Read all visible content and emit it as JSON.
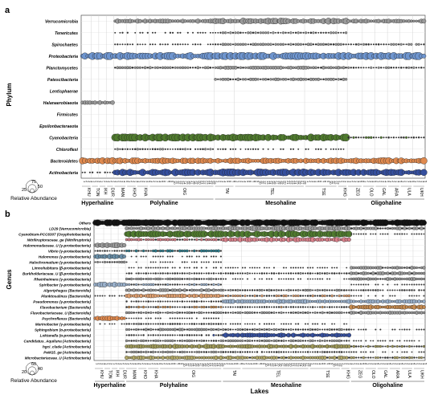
{
  "chart_data": [
    {
      "type": "scatter",
      "panel_label": "a",
      "ylabel": "Phylum",
      "xlabel": "",
      "rows": [
        {
          "label": "Verrucomicrobia",
          "color": "#9a9a9a"
        },
        {
          "label": "Tenericutes",
          "color": "#9a9a9a"
        },
        {
          "label": "Spirochaetes",
          "color": "#9a9a9a"
        },
        {
          "label": "Proteobacteria",
          "color": "#6e95cf"
        },
        {
          "label": "Planctomycetes",
          "color": "#9a9a9a"
        },
        {
          "label": "Patescibacteria",
          "color": "#9a9a9a"
        },
        {
          "label": "Lentisphaerae",
          "color": "#9a9a9a"
        },
        {
          "label": "Halanaerobiaeota",
          "color": "#9a9a9a"
        },
        {
          "label": "Firmicutes",
          "color": "#9a9a9a"
        },
        {
          "label": "Epsilonbacteraeota",
          "color": "#9a9a9a"
        },
        {
          "label": "Cyanobacteria",
          "color": "#4f7a2e"
        },
        {
          "label": "Chloroflexi",
          "color": "#9a9a9a"
        },
        {
          "label": "Bacteroidetes",
          "color": "#e08a4f"
        },
        {
          "label": "Actinobacteria",
          "color": "#354f9e"
        }
      ],
      "lake_groups": [
        "Hyperhaline",
        "Polyhaline",
        "Mesohaline",
        "Oligohaline"
      ],
      "lakes": [
        "KHU",
        "TON",
        "IKH",
        "DUR",
        "MAN",
        "KHO",
        "KHA",
        "OIG",
        "TAI",
        "TEL",
        "TSE",
        "KHG",
        "ZEG",
        "OLO",
        "GAL",
        "ARA",
        "ULA",
        "UKH"
      ],
      "legend": {
        "title": "Relative Abundance",
        "values": [
          25,
          50,
          75
        ]
      }
    },
    {
      "type": "scatter",
      "panel_label": "b",
      "ylabel": "Genus",
      "xlabel": "Lakes",
      "rows": [
        {
          "label": "Others",
          "color": "#111111"
        },
        {
          "label": "LD29 (Verrucomicrobia)",
          "color": "#9a9a9a"
        },
        {
          "label": "Cyanobium-PCC6307 (Oxyphotobacteria)",
          "color": "#4f7a2e"
        },
        {
          "label": "Nitriliruptoraceae_ge (Nitriliruptoria)",
          "color": "#d9808a"
        },
        {
          "label": "Halomonadaceae_U (γ-proteobacteria)",
          "color": "#9a9a9a"
        },
        {
          "label": "Vibrio (γ-proteobacteria)",
          "color": "#2f7f8f"
        },
        {
          "label": "Halomonas (γ-proteobacteria)",
          "color": "#6a8fa8"
        },
        {
          "label": "Halochromatium (γ-proteobacteria)",
          "color": "#9a9a9a"
        },
        {
          "label": "Limnohabitans (β-proteobacteria)",
          "color": "#9a9a9a"
        },
        {
          "label": "Burkholderiaceae_U (β-proteobacteria)",
          "color": "#9a9a9a"
        },
        {
          "label": "Rheinheimera (γ-proteobacteria)",
          "color": "#9a9a9a"
        },
        {
          "label": "Spiribacter (γ-proteobacteria)",
          "color": "#9ab1cc"
        },
        {
          "label": "Algoriphagus (Bacteroidia)",
          "color": "#9a9a9a"
        },
        {
          "label": "Planktosalinus (Bacteroidia)",
          "color": "#e0a070"
        },
        {
          "label": "Pseudomonas (γ-proteobacteria)",
          "color": "#9ab1cc"
        },
        {
          "label": "Flavobacterium (Bacteroidia)",
          "color": "#c58a4f"
        },
        {
          "label": "Flavobacteriaceae_U (Bacteroidia)",
          "color": "#9a9a9a"
        },
        {
          "label": "Psychroflexus (Bacteroidia)",
          "color": "#e08a4f"
        },
        {
          "label": "Marinobacter (γ-proteobacteria)",
          "color": "#9a9a9a"
        },
        {
          "label": "Sphingobium (α-proteobacteria)",
          "color": "#9a9a9a"
        },
        {
          "label": "Loktanella (α-proteobacteria)",
          "color": "#354f9e"
        },
        {
          "label": "Candidatus_Aquiluna (Actinobacteria)",
          "color": "#9a9a9a"
        },
        {
          "label": "hgcI_clade (Actinobacteria)",
          "color": "#a09a5a"
        },
        {
          "label": "PeM15_ge (Actinobacteria)",
          "color": "#9a9a9a"
        },
        {
          "label": "Microbacteriaceae_U (Actinobacteria)",
          "color": "#b3a96a"
        }
      ],
      "lake_groups": [
        "Hyperhaline",
        "Polyhaline",
        "Mesohaline",
        "Oligohaline"
      ],
      "lakes": [
        "KHU",
        "TON",
        "IKH",
        "DUR",
        "MAN",
        "KHO",
        "KHA",
        "OIG",
        "TAI",
        "TEL",
        "TSE",
        "KHG",
        "ZEG",
        "OLO",
        "GAL",
        "ARA",
        "ULA",
        "UKH"
      ],
      "legend": {
        "title": "Relative Abundance",
        "values": [
          20,
          40,
          60
        ]
      }
    }
  ]
}
